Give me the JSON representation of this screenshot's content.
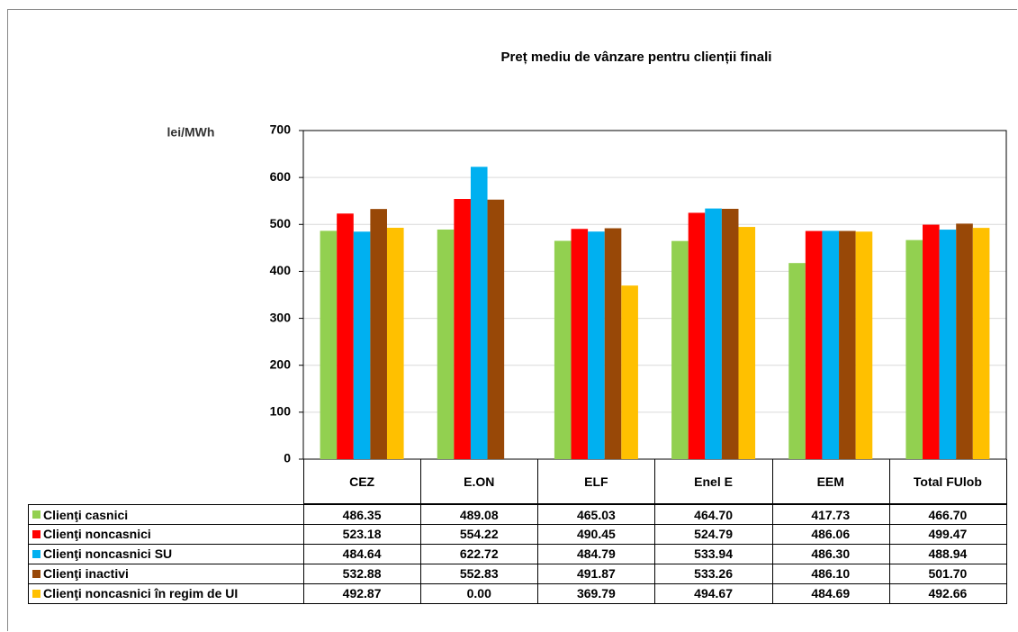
{
  "chart_data": {
    "type": "bar",
    "title": "Preț mediu de vânzare pentru clienții finali",
    "y_label": "lei/MWh",
    "categories": [
      "CEZ",
      "E.ON",
      "ELF",
      "Enel E",
      "EEM",
      "Total FUlob"
    ],
    "ylim": [
      0,
      700
    ],
    "yticks": [
      0,
      100,
      200,
      300,
      400,
      500,
      600,
      700
    ],
    "grid": true,
    "series": [
      {
        "name": "Clienţi casnici",
        "color": "#92d050",
        "values": [
          486.35,
          489.08,
          465.03,
          464.7,
          417.73,
          466.7
        ],
        "value_labels": [
          "486.35",
          "489.08",
          "465.03",
          "464.70",
          "417.73",
          "466.70"
        ]
      },
      {
        "name": "Clienţi noncasnici",
        "color": "#ff0000",
        "values": [
          523.18,
          554.22,
          490.45,
          524.79,
          486.06,
          499.47
        ],
        "value_labels": [
          "523.18",
          "554.22",
          "490.45",
          "524.79",
          "486.06",
          "499.47"
        ]
      },
      {
        "name": "Clienţi noncasnici SU",
        "color": "#00b0f0",
        "values": [
          484.64,
          622.72,
          484.79,
          533.94,
          486.3,
          488.94
        ],
        "value_labels": [
          "484.64",
          "622.72",
          "484.79",
          "533.94",
          "486.30",
          "488.94"
        ]
      },
      {
        "name": "Clienţi inactivi",
        "color": "#984807",
        "values": [
          532.88,
          552.83,
          491.87,
          533.26,
          486.1,
          501.7
        ],
        "value_labels": [
          "532.88",
          "552.83",
          "491.87",
          "533.26",
          "486.10",
          "501.70"
        ]
      },
      {
        "name": "Clienţi noncasnici în regim de UI",
        "color": "#ffc000",
        "values": [
          492.87,
          0,
          369.79,
          494.67,
          484.69,
          492.66
        ],
        "value_labels": [
          "492.87",
          "0.00",
          "369.79",
          "494.67",
          "484.69",
          "492.66"
        ]
      }
    ]
  }
}
